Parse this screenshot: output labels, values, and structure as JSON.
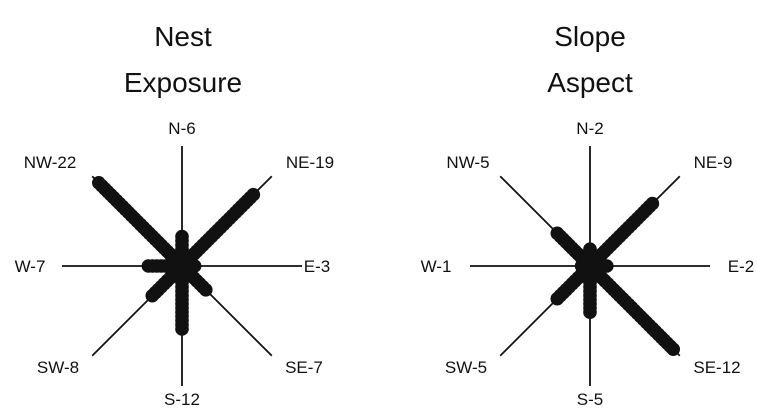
{
  "chart_data": [
    {
      "type": "rose",
      "title_lines": [
        "Nest",
        "Exposure"
      ],
      "max_count": 22,
      "directions": [
        {
          "dir": "N",
          "label": "N-6",
          "value": 6
        },
        {
          "dir": "NE",
          "label": "NE-19",
          "value": 19
        },
        {
          "dir": "E",
          "label": "E-3",
          "value": 3
        },
        {
          "dir": "SE",
          "label": "SE-7",
          "value": 7
        },
        {
          "dir": "S",
          "label": "S-12",
          "value": 12
        },
        {
          "dir": "SW",
          "label": "SW-8",
          "value": 8
        },
        {
          "dir": "W",
          "label": "W-7",
          "value": 7
        },
        {
          "dir": "NW",
          "label": "NW-22",
          "value": 22
        }
      ]
    },
    {
      "type": "rose",
      "title_lines": [
        "Slope",
        "Aspect"
      ],
      "max_count": 12,
      "directions": [
        {
          "dir": "N",
          "label": "N-2",
          "value": 2
        },
        {
          "dir": "NE",
          "label": "NE-9",
          "value": 9
        },
        {
          "dir": "E",
          "label": "E-2",
          "value": 2
        },
        {
          "dir": "SE",
          "label": "SE-12",
          "value": 12
        },
        {
          "dir": "S",
          "label": "S-5",
          "value": 5
        },
        {
          "dir": "SW",
          "label": "SW-5",
          "value": 5
        },
        {
          "dir": "W",
          "label": "W-1",
          "value": 1
        },
        {
          "dir": "NW",
          "label": "NW-5",
          "value": 5
        }
      ]
    }
  ]
}
